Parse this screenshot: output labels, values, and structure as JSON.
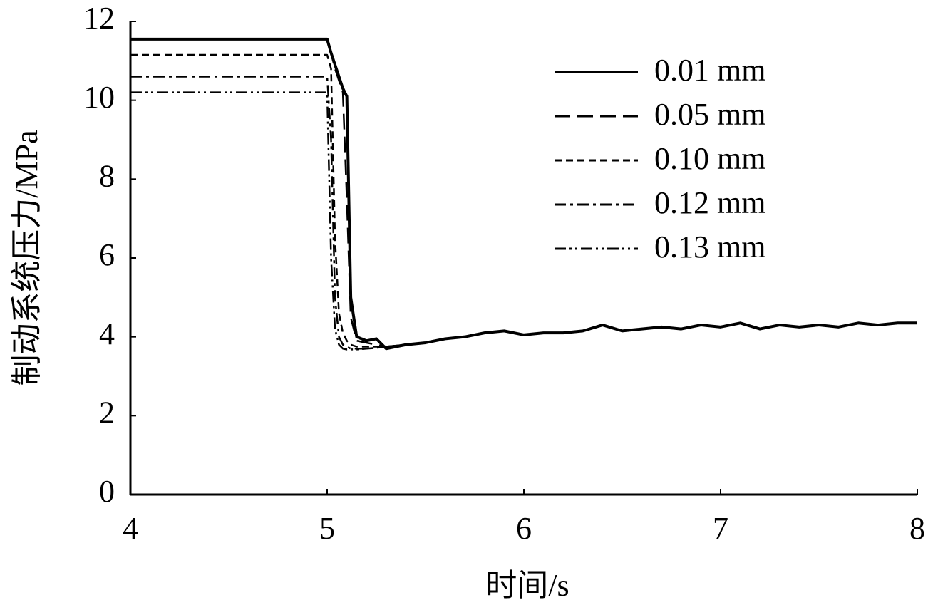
{
  "chart_data": {
    "type": "line",
    "x_label": "时间/s",
    "y_label": "制动系统压力/MPa",
    "x": [
      4,
      5.0,
      5.02,
      5.04,
      5.06,
      5.08,
      5.1,
      5.12,
      5.15,
      5.2,
      5.25,
      5.3,
      5.4,
      5.5,
      5.6,
      5.7,
      5.8,
      5.9,
      6.0,
      6.1,
      6.2,
      6.3,
      6.4,
      6.5,
      6.6,
      6.7,
      6.8,
      6.9,
      7.0,
      7.1,
      7.2,
      7.3,
      7.4,
      7.5,
      7.6,
      7.7,
      7.8,
      7.9,
      8.0
    ],
    "series": [
      {
        "name": "0.01 mm",
        "color": "#000000",
        "dash": "none",
        "values": [
          11.55,
          11.55,
          11.2,
          10.9,
          10.6,
          10.3,
          10.1,
          5.0,
          4.0,
          3.9,
          3.95,
          3.7,
          3.8,
          3.85,
          3.95,
          4.0,
          4.1,
          4.15,
          4.05,
          4.1,
          4.1,
          4.15,
          4.3,
          4.15,
          4.2,
          4.25,
          4.2,
          4.3,
          4.25,
          4.35,
          4.2,
          4.3,
          4.25,
          4.3,
          4.25,
          4.35,
          4.3,
          4.35,
          4.35
        ]
      },
      {
        "name": "0.05 mm",
        "color": "#000000",
        "dash": "22 10",
        "values": [
          11.55,
          11.55,
          11.2,
          10.8,
          10.5,
          10.2,
          7.5,
          4.5,
          3.9,
          3.85,
          3.8,
          3.75,
          3.8,
          3.85,
          3.95,
          4.0,
          4.1,
          4.15,
          4.05,
          4.1,
          4.1,
          4.15,
          4.3,
          4.15,
          4.2,
          4.25,
          4.2,
          4.3,
          4.25,
          4.35,
          4.2,
          4.3,
          4.25,
          4.3,
          4.25,
          4.35,
          4.3,
          4.35,
          4.35
        ]
      },
      {
        "name": "0.10 mm",
        "color": "#000000",
        "dash": "10 6",
        "values": [
          11.15,
          11.15,
          10.8,
          6.5,
          4.6,
          4.1,
          3.9,
          3.8,
          3.75,
          3.75,
          3.75,
          3.75,
          3.8,
          3.85,
          3.95,
          4.0,
          4.1,
          4.15,
          4.05,
          4.1,
          4.1,
          4.15,
          4.3,
          4.15,
          4.2,
          4.25,
          4.2,
          4.3,
          4.25,
          4.35,
          4.2,
          4.3,
          4.25,
          4.3,
          4.25,
          4.35,
          4.3,
          4.35,
          4.35
        ]
      },
      {
        "name": "0.12 mm",
        "color": "#000000",
        "dash": "16 6 4 6",
        "values": [
          10.6,
          10.6,
          9.0,
          5.0,
          4.0,
          3.8,
          3.75,
          3.7,
          3.7,
          3.7,
          3.72,
          3.75,
          3.8,
          3.85,
          3.95,
          4.0,
          4.1,
          4.15,
          4.05,
          4.1,
          4.1,
          4.15,
          4.3,
          4.15,
          4.2,
          4.25,
          4.2,
          4.3,
          4.25,
          4.35,
          4.2,
          4.3,
          4.25,
          4.3,
          4.25,
          4.35,
          4.3,
          4.35,
          4.35
        ]
      },
      {
        "name": "0.13 mm",
        "color": "#000000",
        "dash": "16 5 3 5 3 5",
        "values": [
          10.2,
          10.2,
          6.0,
          4.2,
          3.8,
          3.7,
          3.68,
          3.68,
          3.68,
          3.7,
          3.72,
          3.75,
          3.8,
          3.85,
          3.95,
          4.0,
          4.1,
          4.15,
          4.05,
          4.1,
          4.1,
          4.15,
          4.3,
          4.15,
          4.2,
          4.25,
          4.2,
          4.3,
          4.25,
          4.35,
          4.2,
          4.3,
          4.25,
          4.3,
          4.25,
          4.35,
          4.3,
          4.35,
          4.35
        ]
      }
    ],
    "xlim": [
      4,
      8
    ],
    "ylim": [
      0,
      12
    ],
    "xticks": [
      4,
      5,
      6,
      7,
      8
    ],
    "yticks": [
      0,
      2,
      4,
      6,
      8,
      10,
      12
    ],
    "grid": false,
    "legend": "upper right"
  }
}
